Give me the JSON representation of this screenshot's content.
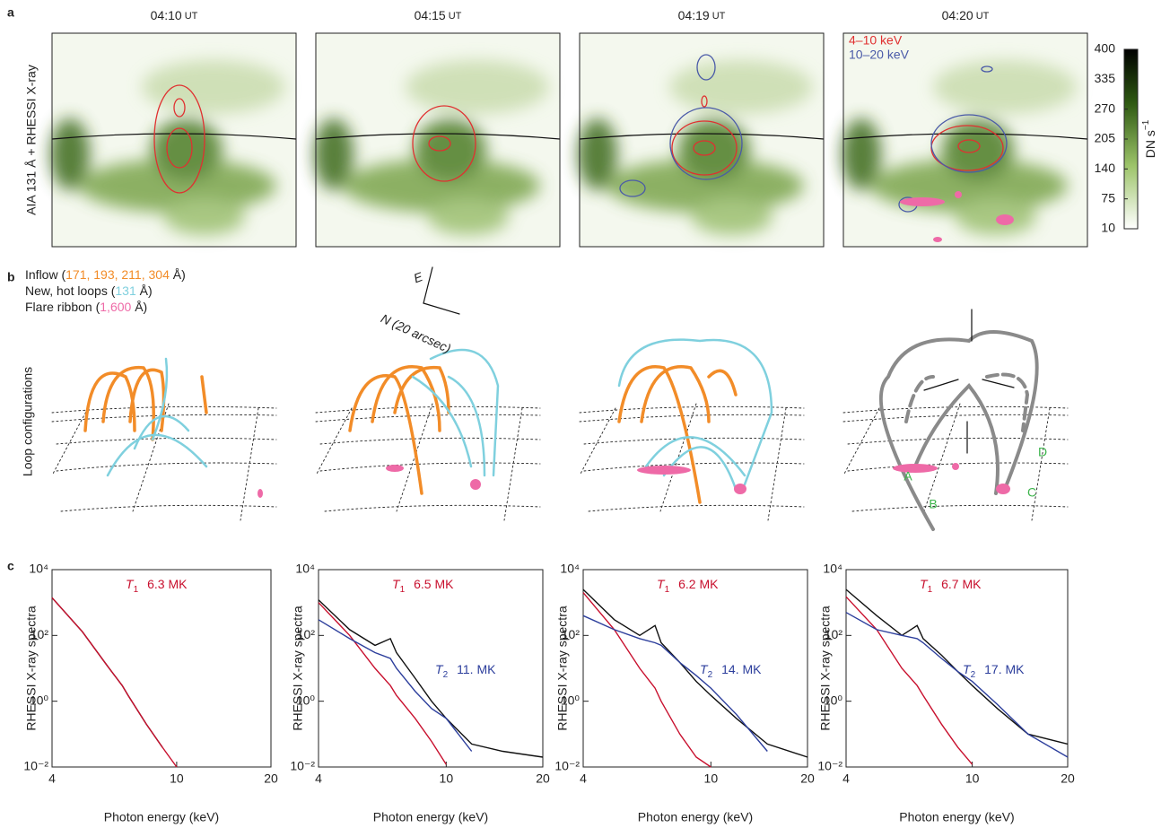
{
  "panel_labels": [
    "a",
    "b",
    "c"
  ],
  "panel_a": {
    "y_label": "AIA 131 Å + RHESSI X-ray",
    "times": [
      {
        "time": "04:10",
        "unit": "UT"
      },
      {
        "time": "04:15",
        "unit": "UT"
      },
      {
        "time": "04:19",
        "unit": "UT"
      },
      {
        "time": "04:20",
        "unit": "UT"
      }
    ],
    "legend": [
      {
        "text": "4–10 keV",
        "color": "#e03030"
      },
      {
        "text": "10–20 keV",
        "color": "#4a5aa8"
      }
    ],
    "colorbar": {
      "lim": [
        10,
        400
      ],
      "ticks": [
        400,
        335,
        270,
        205,
        140,
        75,
        10
      ],
      "label": "DN s",
      "label_sup": "−1"
    }
  },
  "panel_b": {
    "legend": [
      {
        "parts": [
          "Inflow (",
          "171, 193, 211, 304",
          " Å)"
        ],
        "color": "#f28c28"
      },
      {
        "parts": [
          "New, hot loops (",
          "131",
          " Å)"
        ],
        "color": "#7fd0de"
      },
      {
        "parts": [
          "Flare ribbon (",
          "1,600",
          " Å)"
        ],
        "color": "#ee6aa7"
      }
    ],
    "compass": {
      "east": "E",
      "north": "N (20 arcsec)"
    },
    "y_label": "Loop configurations",
    "footpoints": [
      "A",
      "B",
      "C",
      "D"
    ]
  },
  "chart_data": [
    {
      "type": "line",
      "y_label": "RHESSI X-ray spectra",
      "x_label": "Photon energy (keV)",
      "log_x": true,
      "log_y": true,
      "xlim": [
        4,
        20
      ],
      "xticks": [
        4,
        10,
        20
      ],
      "ylim": [
        0.01,
        10000
      ],
      "yticks": [
        {
          "value": 10000,
          "label": "10⁴"
        },
        {
          "value": 100,
          "label": "10²"
        },
        {
          "value": 1,
          "label": "10⁰"
        },
        {
          "value": 0.01,
          "label": "10⁻²"
        }
      ],
      "t1": {
        "symbol": "T",
        "sub": "1",
        "text": "6.3 MK"
      },
      "x": [
        4,
        5,
        6,
        6.7,
        7,
        8,
        9,
        10,
        12,
        15,
        20
      ],
      "series": [
        {
          "color": "#111111",
          "values": [
            1400,
            130,
            12,
            3,
            1.5,
            0.2,
            0.04,
            null,
            null,
            null,
            null
          ]
        },
        {
          "color": "#c8102e",
          "values": [
            1400,
            130,
            12,
            3,
            1.5,
            0.2,
            0.04,
            0.01,
            null,
            null,
            null
          ]
        }
      ]
    },
    {
      "type": "line",
      "y_label": "RHESSI X-ray spectra",
      "x_label": "Photon energy (keV)",
      "log_x": true,
      "log_y": true,
      "xlim": [
        4,
        20
      ],
      "xticks": [
        4,
        10,
        20
      ],
      "ylim": [
        0.01,
        10000
      ],
      "yticks": [
        {
          "value": 10000,
          "label": "10⁴"
        },
        {
          "value": 100,
          "label": "10²"
        },
        {
          "value": 1,
          "label": "10⁰"
        },
        {
          "value": 0.01,
          "label": "10⁻²"
        }
      ],
      "t1": {
        "symbol": "T",
        "sub": "1",
        "text": "6.5 MK"
      },
      "t2": {
        "symbol": "T",
        "sub": "2",
        "text": "11. MK"
      },
      "x": [
        4,
        5,
        6,
        6.7,
        7,
        8,
        9,
        10,
        12,
        15,
        20
      ],
      "series": [
        {
          "color": "#111111",
          "values": [
            1200,
            150,
            50,
            80,
            30,
            5,
            1,
            0.3,
            0.05,
            0.03,
            0.02
          ]
        },
        {
          "color": "#c8102e",
          "values": [
            1000,
            100,
            10,
            3,
            1.5,
            0.3,
            0.06,
            0.012,
            null,
            null,
            null
          ]
        },
        {
          "color": "#2c3e9c",
          "values": [
            300,
            80,
            30,
            20,
            10,
            2,
            0.6,
            0.3,
            0.03,
            null,
            null
          ]
        }
      ]
    },
    {
      "type": "line",
      "y_label": "RHESSI X-ray spectra",
      "x_label": "Photon energy (keV)",
      "log_x": true,
      "log_y": true,
      "xlim": [
        4,
        20
      ],
      "xticks": [
        4,
        10,
        20
      ],
      "ylim": [
        0.01,
        10000
      ],
      "yticks": [
        {
          "value": 10000,
          "label": "10⁴"
        },
        {
          "value": 100,
          "label": "10²"
        },
        {
          "value": 1,
          "label": "10⁰"
        },
        {
          "value": 0.01,
          "label": "10⁻²"
        }
      ],
      "t1": {
        "symbol": "T",
        "sub": "1",
        "text": "6.2 MK"
      },
      "t2": {
        "symbol": "T",
        "sub": "2",
        "text": "14. MK"
      },
      "x": [
        4,
        5,
        6,
        6.7,
        7,
        8,
        9,
        10,
        12,
        15,
        20
      ],
      "series": [
        {
          "color": "#111111",
          "values": [
            2500,
            300,
            100,
            200,
            60,
            15,
            4,
            1.5,
            0.3,
            0.05,
            0.02
          ]
        },
        {
          "color": "#c8102e",
          "values": [
            2000,
            150,
            10,
            2.5,
            1,
            0.1,
            0.02,
            0.01,
            null,
            null,
            null
          ]
        },
        {
          "color": "#2c3e9c",
          "values": [
            400,
            150,
            80,
            60,
            50,
            15,
            6,
            2.5,
            0.4,
            0.03,
            null
          ]
        }
      ]
    },
    {
      "type": "line",
      "y_label": "RHESSI X-ray spectra",
      "x_label": "Photon energy (keV)",
      "log_x": true,
      "log_y": true,
      "xlim": [
        4,
        20
      ],
      "xticks": [
        4,
        10,
        20
      ],
      "ylim": [
        0.01,
        10000
      ],
      "yticks": [
        {
          "value": 10000,
          "label": "10⁴"
        },
        {
          "value": 100,
          "label": "10²"
        },
        {
          "value": 1,
          "label": "10⁰"
        },
        {
          "value": 0.01,
          "label": "10⁻²"
        }
      ],
      "t1": {
        "symbol": "T",
        "sub": "1",
        "text": "6.7 MK"
      },
      "t2": {
        "symbol": "T",
        "sub": "2",
        "text": "17. MK"
      },
      "x": [
        4,
        5,
        6,
        6.7,
        7,
        8,
        9,
        10,
        12,
        15,
        20
      ],
      "series": [
        {
          "color": "#111111",
          "values": [
            2500,
            400,
            100,
            200,
            80,
            25,
            8,
            3,
            0.6,
            0.1,
            0.05
          ]
        },
        {
          "color": "#c8102e",
          "values": [
            1500,
            150,
            10,
            3,
            1.5,
            0.2,
            0.04,
            0.012,
            null,
            null,
            null
          ]
        },
        {
          "color": "#2c3e9c",
          "values": [
            500,
            150,
            100,
            80,
            60,
            20,
            8,
            4,
            0.8,
            0.1,
            0.02
          ]
        }
      ]
    }
  ]
}
